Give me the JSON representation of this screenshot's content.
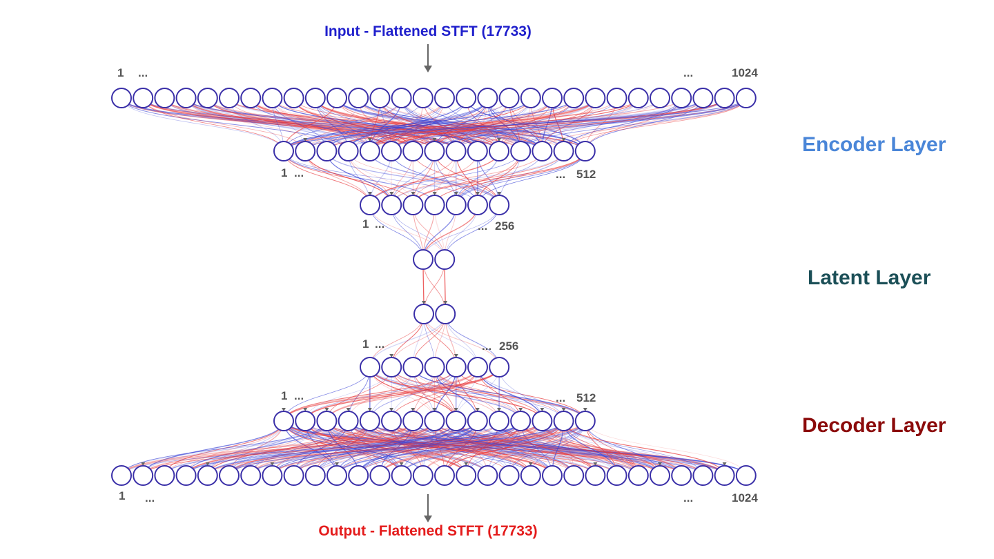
{
  "input_label": "Input - Flattened STFT (17733)",
  "output_label": "Output - Flattened STFT (17733)",
  "sections": {
    "encoder": "Encoder Layer",
    "latent": "Latent Layer",
    "decoder": "Decoder Layer"
  },
  "layers": [
    {
      "id": "enc-1024",
      "visible_nodes": 30,
      "first": "1",
      "ellipsis": "...",
      "last": "1024"
    },
    {
      "id": "enc-512",
      "visible_nodes": 15,
      "first": "1",
      "ellipsis": "...",
      "last": "512"
    },
    {
      "id": "enc-256",
      "visible_nodes": 7,
      "first": "1",
      "ellipsis": "...",
      "last": "256"
    },
    {
      "id": "latent-enc",
      "visible_nodes": 2
    },
    {
      "id": "latent-dec",
      "visible_nodes": 2
    },
    {
      "id": "dec-256",
      "visible_nodes": 7,
      "first": "1",
      "ellipsis": "...",
      "last": "256"
    },
    {
      "id": "dec-512",
      "visible_nodes": 15,
      "first": "1",
      "ellipsis": "...",
      "last": "512"
    },
    {
      "id": "dec-1024",
      "visible_nodes": 30,
      "first": "1",
      "ellipsis": "...",
      "last": "1024"
    }
  ],
  "colors": {
    "input_label": "#1f1fcc",
    "output_label": "#e41b1b",
    "encoder": "#4a86d8",
    "latent": "#1b4f57",
    "decoder": "#8b0a0a",
    "node_stroke": "#3a2fa8",
    "edge_red": "#e8383a",
    "edge_blue": "#3b44d6",
    "index_text": "#555555",
    "arrow": "#666666"
  }
}
